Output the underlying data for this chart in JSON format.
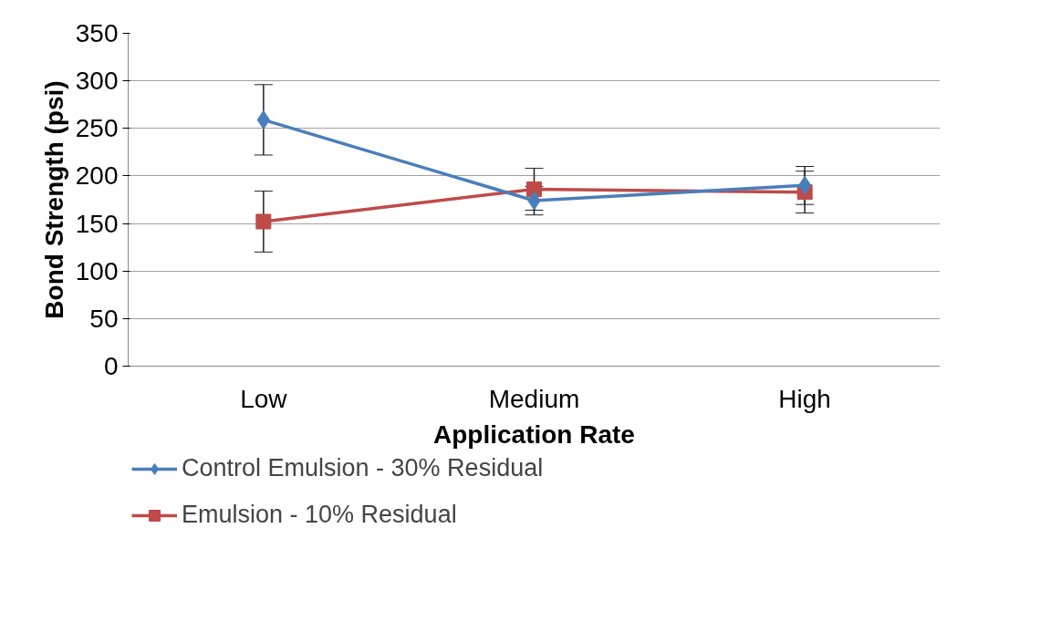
{
  "chart_data": {
    "type": "line",
    "xlabel": "Application Rate",
    "ylabel": "Bond Strength (psi)",
    "categories": [
      "Low",
      "Medium",
      "High"
    ],
    "series": [
      {
        "name": "Control Emulsion - 30% Residual",
        "color": "#4a7ebb",
        "marker": "diamond",
        "values": [
          259,
          174,
          190
        ],
        "errors": [
          37,
          15,
          20
        ]
      },
      {
        "name": "Emulsion - 10% Residual",
        "color": "#be4b48",
        "marker": "square",
        "values": [
          152,
          186,
          183
        ],
        "errors": [
          32,
          22,
          22
        ]
      }
    ],
    "ylim": [
      0,
      350
    ],
    "yticks": [
      0,
      50,
      100,
      150,
      200,
      250,
      300,
      350
    ],
    "grid": "y",
    "legend": "bottom"
  }
}
